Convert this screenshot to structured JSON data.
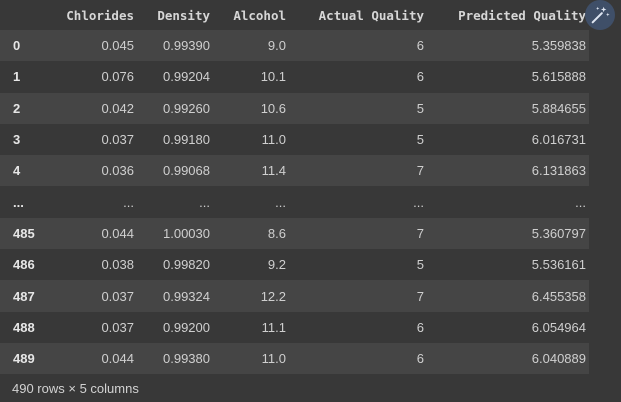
{
  "table": {
    "columns": [
      "Chlorides",
      "Density",
      "Alcohol",
      "Actual Quality",
      "Predicted Quality"
    ],
    "rows": [
      {
        "index": "0",
        "cells": [
          "0.045",
          "0.99390",
          "9.0",
          "6",
          "5.359838"
        ]
      },
      {
        "index": "1",
        "cells": [
          "0.076",
          "0.99204",
          "10.1",
          "6",
          "5.615888"
        ]
      },
      {
        "index": "2",
        "cells": [
          "0.042",
          "0.99260",
          "10.6",
          "5",
          "5.884655"
        ]
      },
      {
        "index": "3",
        "cells": [
          "0.037",
          "0.99180",
          "11.0",
          "5",
          "6.016731"
        ]
      },
      {
        "index": "4",
        "cells": [
          "0.036",
          "0.99068",
          "11.4",
          "7",
          "6.131863"
        ]
      },
      {
        "index": "...",
        "cells": [
          "...",
          "...",
          "...",
          "...",
          "..."
        ]
      },
      {
        "index": "485",
        "cells": [
          "0.044",
          "1.00030",
          "8.6",
          "7",
          "5.360797"
        ]
      },
      {
        "index": "486",
        "cells": [
          "0.038",
          "0.99820",
          "9.2",
          "5",
          "5.536161"
        ]
      },
      {
        "index": "487",
        "cells": [
          "0.037",
          "0.99324",
          "12.2",
          "7",
          "6.455358"
        ]
      },
      {
        "index": "488",
        "cells": [
          "0.037",
          "0.99200",
          "11.1",
          "6",
          "6.054964"
        ]
      },
      {
        "index": "489",
        "cells": [
          "0.044",
          "0.99380",
          "11.0",
          "6",
          "6.040889"
        ]
      }
    ]
  },
  "footer": {
    "shape_text": "490 rows × 5 columns"
  },
  "toolbar": {
    "magic_icon": "magic-wand-icon",
    "accent_color": "#3f4f68"
  }
}
